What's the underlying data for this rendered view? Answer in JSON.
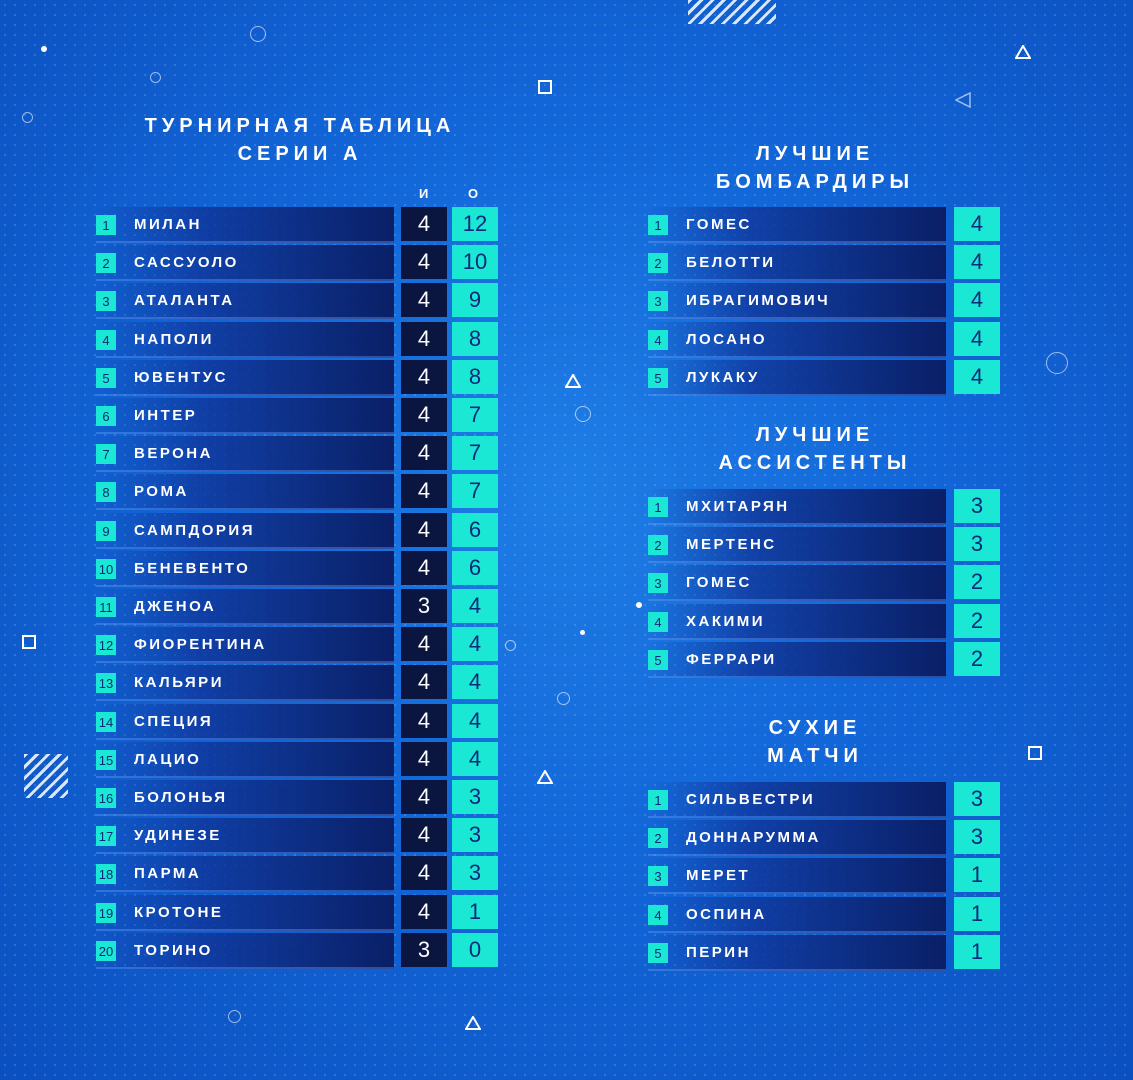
{
  "league_table": {
    "title_line1": "ТУРНИРНАЯ ТАБЛИЦА",
    "title_line2": "СЕРИИ А",
    "col_games": "И",
    "col_points": "О",
    "rows": [
      {
        "pos": "1",
        "team": "МИЛАН",
        "games": "4",
        "points": "12"
      },
      {
        "pos": "2",
        "team": "САССУОЛО",
        "games": "4",
        "points": "10"
      },
      {
        "pos": "3",
        "team": "АТАЛАНТА",
        "games": "4",
        "points": "9"
      },
      {
        "pos": "4",
        "team": "НАПОЛИ",
        "games": "4",
        "points": "8"
      },
      {
        "pos": "5",
        "team": "ЮВЕНТУС",
        "games": "4",
        "points": "8"
      },
      {
        "pos": "6",
        "team": "ИНТЕР",
        "games": "4",
        "points": "7"
      },
      {
        "pos": "7",
        "team": "ВЕРОНА",
        "games": "4",
        "points": "7"
      },
      {
        "pos": "8",
        "team": "РОМА",
        "games": "4",
        "points": "7"
      },
      {
        "pos": "9",
        "team": "САМПДОРИЯ",
        "games": "4",
        "points": "6"
      },
      {
        "pos": "10",
        "team": "БЕНЕВЕНТО",
        "games": "4",
        "points": "6"
      },
      {
        "pos": "11",
        "team": "ДЖЕНОА",
        "games": "3",
        "points": "4"
      },
      {
        "pos": "12",
        "team": "ФИОРЕНТИНА",
        "games": "4",
        "points": "4"
      },
      {
        "pos": "13",
        "team": "КАЛЬЯРИ",
        "games": "4",
        "points": "4"
      },
      {
        "pos": "14",
        "team": "СПЕЦИЯ",
        "games": "4",
        "points": "4"
      },
      {
        "pos": "15",
        "team": "ЛАЦИО",
        "games": "4",
        "points": "4"
      },
      {
        "pos": "16",
        "team": "БОЛОНЬЯ",
        "games": "4",
        "points": "3"
      },
      {
        "pos": "17",
        "team": "УДИНЕЗЕ",
        "games": "4",
        "points": "3"
      },
      {
        "pos": "18",
        "team": "ПАРМА",
        "games": "4",
        "points": "3"
      },
      {
        "pos": "19",
        "team": "КРОТОНЕ",
        "games": "4",
        "points": "1"
      },
      {
        "pos": "20",
        "team": "ТОРИНО",
        "games": "3",
        "points": "0"
      }
    ]
  },
  "scorers": {
    "title_line1": "ЛУЧШИЕ",
    "title_line2": "БОМБАРДИРЫ",
    "rows": [
      {
        "pos": "1",
        "name": "ГОМЕС",
        "value": "4"
      },
      {
        "pos": "2",
        "name": "БЕЛОТТИ",
        "value": "4"
      },
      {
        "pos": "3",
        "name": "ИБРАГИМОВИЧ",
        "value": "4"
      },
      {
        "pos": "4",
        "name": "ЛОСАНО",
        "value": "4"
      },
      {
        "pos": "5",
        "name": "ЛУКАКУ",
        "value": "4"
      }
    ]
  },
  "assists": {
    "title_line1": "ЛУЧШИЕ",
    "title_line2": "АССИСТЕНТЫ",
    "rows": [
      {
        "pos": "1",
        "name": "МХИТАРЯН",
        "value": "3"
      },
      {
        "pos": "2",
        "name": "МЕРТЕНС",
        "value": "3"
      },
      {
        "pos": "3",
        "name": "ГОМЕС",
        "value": "2"
      },
      {
        "pos": "4",
        "name": "ХАКИМИ",
        "value": "2"
      },
      {
        "pos": "5",
        "name": "ФЕРРАРИ",
        "value": "2"
      }
    ]
  },
  "clean_sheets": {
    "title_line1": "СУХИЕ",
    "title_line2": "МАТЧИ",
    "rows": [
      {
        "pos": "1",
        "name": "СИЛЬВЕСТРИ",
        "value": "3"
      },
      {
        "pos": "2",
        "name": "ДОННАРУММА",
        "value": "3"
      },
      {
        "pos": "3",
        "name": "МЕРЕТ",
        "value": "1"
      },
      {
        "pos": "4",
        "name": "ОСПИНА",
        "value": "1"
      },
      {
        "pos": "5",
        "name": "ПЕРИН",
        "value": "1"
      }
    ]
  },
  "colors": {
    "accent": "#1be8d4",
    "dark_cell": "#0a1540",
    "background": "#1266d8"
  }
}
